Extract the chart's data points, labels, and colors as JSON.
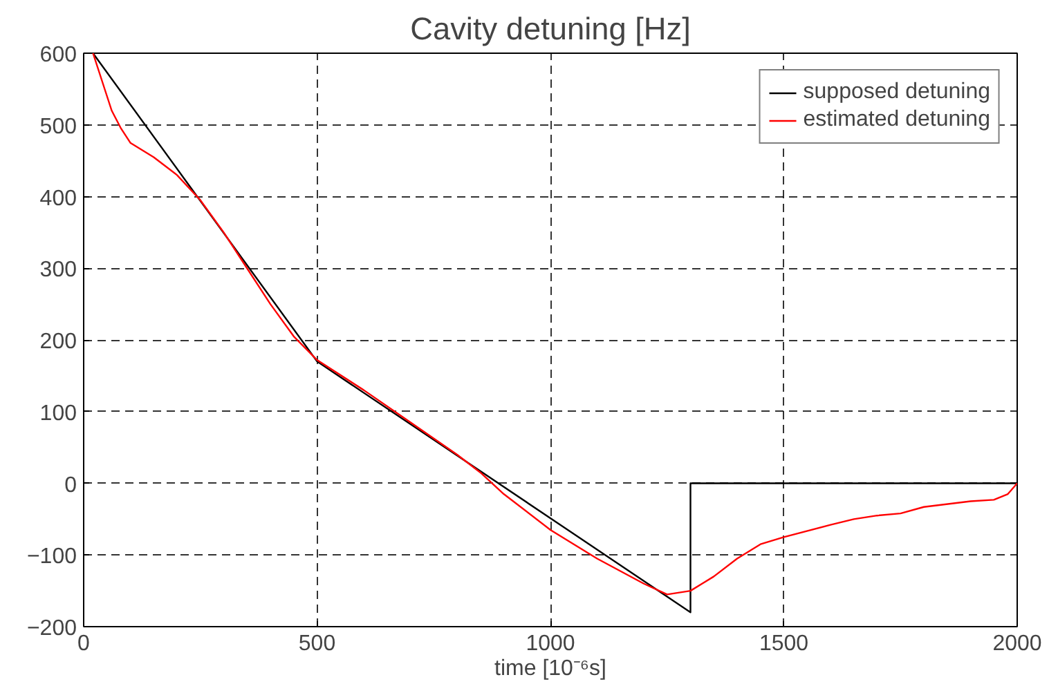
{
  "chart_data": {
    "type": "line",
    "title": "Cavity detuning [Hz]",
    "xlabel": "time [10⁻⁶s]",
    "xlim": [
      0,
      2000
    ],
    "xticks": [
      0,
      500,
      1000,
      1500,
      2000
    ],
    "ylim": [
      -200,
      600
    ],
    "yticks": [
      -200,
      -100,
      0,
      100,
      200,
      300,
      400,
      500,
      600
    ],
    "grid": true,
    "legend": "top right",
    "line_style": "solid",
    "series": [
      {
        "name": "supposed detuning",
        "color": "#000000",
        "x": [
          20,
          500,
          1300,
          1300,
          2000
        ],
        "values": [
          600,
          170,
          -180,
          0,
          0
        ]
      },
      {
        "name": "estimated detuning",
        "color": "#ff0000",
        "x": [
          20,
          40,
          60,
          80,
          100,
          150,
          200,
          250,
          300,
          350,
          400,
          450,
          500,
          600,
          700,
          800,
          850,
          900,
          1000,
          1100,
          1200,
          1250,
          1300,
          1350,
          1400,
          1450,
          1500,
          1600,
          1650,
          1700,
          1750,
          1800,
          1900,
          1950,
          1980,
          2000
        ],
        "values": [
          600,
          560,
          520,
          495,
          475,
          455,
          430,
          395,
          350,
          300,
          250,
          205,
          172,
          130,
          85,
          40,
          15,
          -15,
          -65,
          -105,
          -140,
          -155,
          -150,
          -130,
          -105,
          -85,
          -75,
          -58,
          -50,
          -45,
          -42,
          -33,
          -25,
          -23,
          -15,
          0
        ]
      }
    ]
  }
}
